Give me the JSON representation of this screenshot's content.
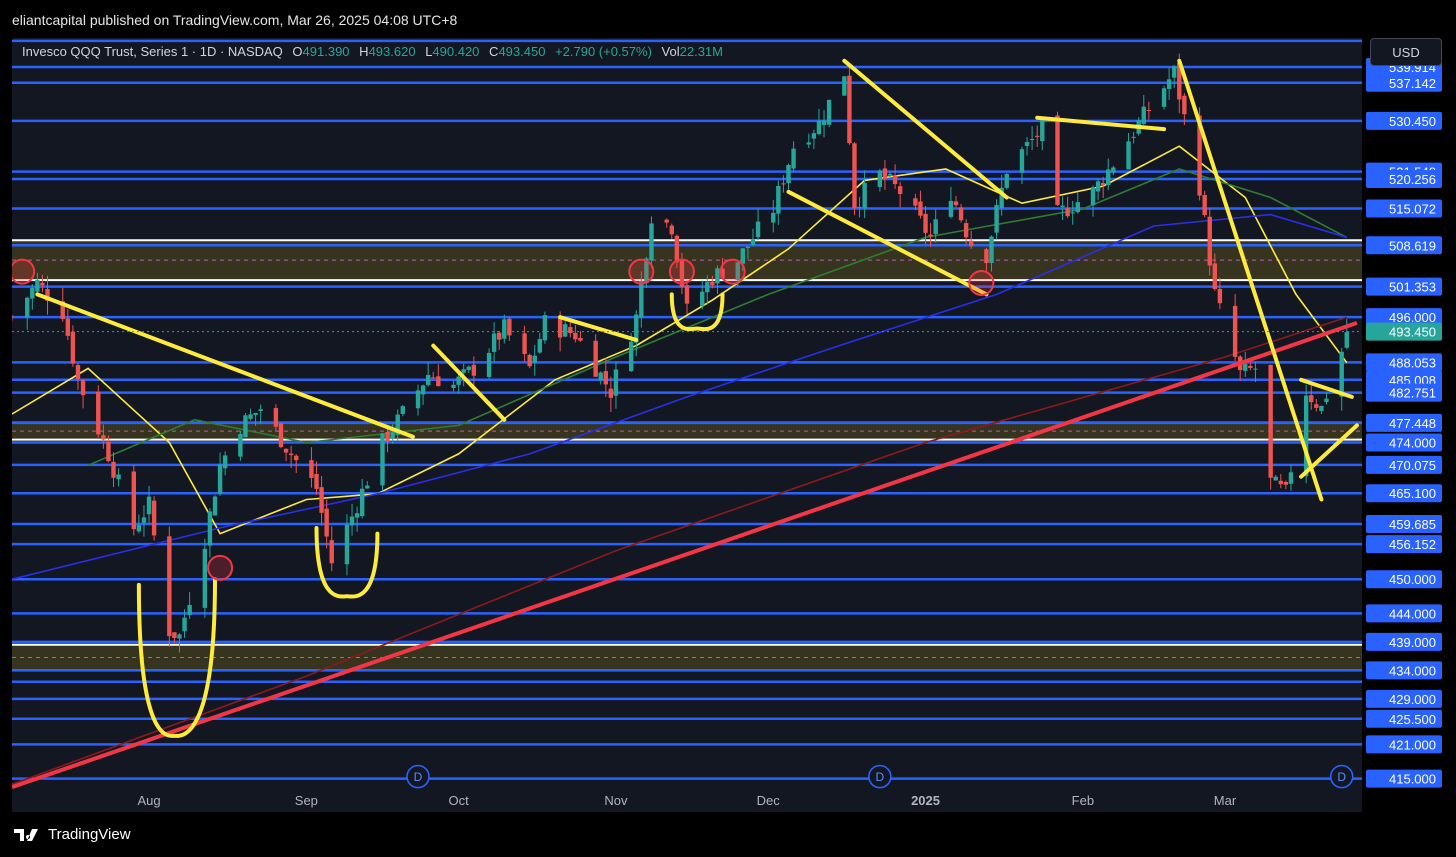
{
  "header": {
    "publisher_text": "eliantcapital published on TradingView.com, Mar 26, 2025 04:08 UTC+8"
  },
  "legend": {
    "name": "Invesco QQQ Trust, Series 1 · 1D · NASDAQ",
    "open_key": "O",
    "open": "491.390",
    "high_key": "H",
    "high": "493.620",
    "low_key": "L",
    "low": "490.420",
    "close_key": "C",
    "close": "493.450",
    "change": "+2.790 (+0.57%)",
    "vol_key": "Vol",
    "vol": "22.31M"
  },
  "currency_button": "USD",
  "footer": {
    "brand": "TradingView"
  },
  "colors": {
    "background": "#131722",
    "up": "#26a69a",
    "down": "#ef5350",
    "level_line": "#2962ff",
    "drawing": "#ffeb3b",
    "trendline": "#f23645",
    "current_price_bg": "#26a69a"
  },
  "chart_data": {
    "type": "candlestick",
    "symbol": "QQQ",
    "interval": "1D",
    "y_range": [
      413,
      545
    ],
    "x_range": [
      "2024-07-05",
      "2025-03-28"
    ],
    "current_price": "493.450",
    "price_levels": [
      {
        "value": 539.914,
        "label": "539.914"
      },
      {
        "value": 537.142,
        "label": "537.142"
      },
      {
        "value": 530.45,
        "label": "530.450"
      },
      {
        "value": 521.54,
        "label": "521.540"
      },
      {
        "value": 520.256,
        "label": "520.256"
      },
      {
        "value": 515.072,
        "label": "515.072"
      },
      {
        "value": 508.619,
        "label": "508.619"
      },
      {
        "value": 501.353,
        "label": "501.353"
      },
      {
        "value": 496.0,
        "label": "496.000"
      },
      {
        "value": 488.053,
        "label": "488.053"
      },
      {
        "value": 485.008,
        "label": "485.008"
      },
      {
        "value": 482.751,
        "label": "482.751"
      },
      {
        "value": 477.448,
        "label": "477.448"
      },
      {
        "value": 474.0,
        "label": "474.000"
      },
      {
        "value": 470.075,
        "label": "470.075"
      },
      {
        "value": 465.1,
        "label": "465.100"
      },
      {
        "value": 459.685,
        "label": "459.685"
      },
      {
        "value": 456.152,
        "label": "456.152"
      },
      {
        "value": 450.0,
        "label": "450.000"
      },
      {
        "value": 444.0,
        "label": "444.000"
      },
      {
        "value": 439.0,
        "label": "439.000"
      },
      {
        "value": 434.0,
        "label": "434.000"
      },
      {
        "value": 429.0,
        "label": "429.000"
      },
      {
        "value": 425.5,
        "label": "425.500"
      },
      {
        "value": 421.0,
        "label": "421.000"
      },
      {
        "value": 415.0,
        "label": "415.000"
      }
    ],
    "extra_lines": [
      544.5,
      432.0
    ],
    "zones": [
      {
        "from": 502.5,
        "to": 509.5
      },
      {
        "from": 474.5,
        "to": 477.5
      },
      {
        "from": 434.0,
        "to": 438.5
      }
    ],
    "x_ticks": [
      {
        "date": "2024-08-01",
        "label": "Aug",
        "bold": false
      },
      {
        "date": "2024-09-01",
        "label": "Sep",
        "bold": false
      },
      {
        "date": "2024-10-01",
        "label": "Oct",
        "bold": false
      },
      {
        "date": "2024-11-01",
        "label": "Nov",
        "bold": false
      },
      {
        "date": "2024-12-01",
        "label": "Dec",
        "bold": false
      },
      {
        "date": "2025-01-01",
        "label": "2025",
        "bold": true
      },
      {
        "date": "2025-02-01",
        "label": "Feb",
        "bold": false
      },
      {
        "date": "2025-03-01",
        "label": "Mar",
        "bold": false
      }
    ],
    "dividend_markers": [
      {
        "date": "2024-09-23",
        "value": 415,
        "label": "D"
      },
      {
        "date": "2024-12-23",
        "value": 415,
        "label": "D"
      },
      {
        "date": "2025-03-24",
        "value": 415,
        "label": "D"
      }
    ],
    "close_path": [
      [
        "2024-07-05",
        496
      ],
      [
        "2024-07-10",
        502
      ],
      [
        "2024-07-15",
        497
      ],
      [
        "2024-07-18",
        485
      ],
      [
        "2024-07-24",
        472
      ],
      [
        "2024-07-29",
        459
      ],
      [
        "2024-08-01",
        463
      ],
      [
        "2024-08-05",
        441
      ],
      [
        "2024-08-07",
        440
      ],
      [
        "2024-08-12",
        457
      ],
      [
        "2024-08-15",
        470
      ],
      [
        "2024-08-19",
        477
      ],
      [
        "2024-08-23",
        480
      ],
      [
        "2024-08-29",
        472
      ],
      [
        "2024-09-03",
        466
      ],
      [
        "2024-09-06",
        453
      ],
      [
        "2024-09-10",
        461
      ],
      [
        "2024-09-16",
        474
      ],
      [
        "2024-09-20",
        479
      ],
      [
        "2024-09-25",
        486
      ],
      [
        "2024-09-30",
        484
      ],
      [
        "2024-10-04",
        487
      ],
      [
        "2024-10-10",
        494
      ],
      [
        "2024-10-15",
        487
      ],
      [
        "2024-10-18",
        495
      ],
      [
        "2024-10-24",
        493
      ],
      [
        "2024-10-31",
        483
      ],
      [
        "2024-11-05",
        496
      ],
      [
        "2024-11-08",
        514
      ],
      [
        "2024-11-12",
        512
      ],
      [
        "2024-11-15",
        497
      ],
      [
        "2024-11-20",
        503
      ],
      [
        "2024-11-25",
        506
      ],
      [
        "2024-12-02",
        515
      ],
      [
        "2024-12-06",
        526
      ],
      [
        "2024-12-11",
        530
      ],
      [
        "2024-12-16",
        539
      ],
      [
        "2024-12-18",
        516
      ],
      [
        "2024-12-23",
        521
      ],
      [
        "2024-12-27",
        518
      ],
      [
        "2025-01-02",
        510
      ],
      [
        "2025-01-06",
        518
      ],
      [
        "2025-01-10",
        509
      ],
      [
        "2025-01-13",
        507
      ],
      [
        "2025-01-17",
        522
      ],
      [
        "2025-01-24",
        529
      ],
      [
        "2025-01-27",
        514
      ],
      [
        "2025-02-03",
        518
      ],
      [
        "2025-02-07",
        523
      ],
      [
        "2025-02-12",
        530
      ],
      [
        "2025-02-19",
        539
      ],
      [
        "2025-02-24",
        519
      ],
      [
        "2025-02-27",
        500
      ],
      [
        "2025-03-04",
        486
      ],
      [
        "2025-03-07",
        487
      ],
      [
        "2025-03-10",
        467
      ],
      [
        "2025-03-13",
        465
      ],
      [
        "2025-03-17",
        483
      ],
      [
        "2025-03-20",
        480
      ],
      [
        "2025-03-24",
        490
      ],
      [
        "2025-03-25",
        493.45
      ]
    ],
    "moving_averages": [
      {
        "color": "#ffeb3b",
        "points": [
          [
            "2024-07-05",
            479
          ],
          [
            "2024-07-20",
            487
          ],
          [
            "2024-08-05",
            474
          ],
          [
            "2024-08-15",
            458
          ],
          [
            "2024-09-01",
            464
          ],
          [
            "2024-09-15",
            465
          ],
          [
            "2024-10-01",
            472
          ],
          [
            "2024-10-20",
            485
          ],
          [
            "2024-11-05",
            491
          ],
          [
            "2024-11-20",
            499
          ],
          [
            "2024-12-05",
            508
          ],
          [
            "2024-12-20",
            520
          ],
          [
            "2025-01-05",
            522
          ],
          [
            "2025-01-20",
            516
          ],
          [
            "2025-02-05",
            519
          ],
          [
            "2025-02-20",
            526
          ],
          [
            "2025-03-05",
            517
          ],
          [
            "2025-03-15",
            500
          ],
          [
            "2025-03-25",
            488
          ]
        ]
      },
      {
        "color": "#2e7d32",
        "points": [
          [
            "2024-07-20",
            470
          ],
          [
            "2024-08-10",
            478
          ],
          [
            "2024-09-01",
            474
          ],
          [
            "2024-10-01",
            477
          ],
          [
            "2024-11-01",
            489
          ],
          [
            "2024-12-01",
            500
          ],
          [
            "2025-01-01",
            510
          ],
          [
            "2025-02-01",
            515
          ],
          [
            "2025-02-20",
            522
          ],
          [
            "2025-03-10",
            517
          ],
          [
            "2025-03-25",
            510
          ]
        ]
      },
      {
        "color": "#2a2ee8",
        "points": [
          [
            "2024-07-05",
            450
          ],
          [
            "2024-08-15",
            459
          ],
          [
            "2024-09-15",
            465
          ],
          [
            "2024-10-15",
            472
          ],
          [
            "2024-11-15",
            482
          ],
          [
            "2024-12-15",
            491
          ],
          [
            "2025-01-15",
            500
          ],
          [
            "2025-02-15",
            512
          ],
          [
            "2025-03-10",
            514
          ],
          [
            "2025-03-25",
            510
          ]
        ]
      },
      {
        "color": "#8b1a1a",
        "points": [
          [
            "2024-07-05",
            414
          ],
          [
            "2024-09-01",
            433
          ],
          [
            "2024-11-01",
            455
          ],
          [
            "2025-01-01",
            474
          ],
          [
            "2025-03-01",
            489
          ],
          [
            "2025-03-25",
            496
          ]
        ]
      }
    ],
    "trendlines": [
      {
        "color": "#f23645",
        "from": [
          "2024-07-05",
          413.5
        ],
        "to": [
          "2025-03-27",
          495
        ]
      }
    ],
    "drawings": [
      {
        "from": [
          "2024-07-10",
          500
        ],
        "to": [
          "2024-09-22",
          475
        ]
      },
      {
        "from": [
          "2024-12-16",
          541
        ],
        "to": [
          "2025-01-17",
          517
        ]
      },
      {
        "from": [
          "2024-12-05",
          518
        ],
        "to": [
          "2025-01-13",
          500
        ]
      },
      {
        "from": [
          "2025-01-23",
          531
        ],
        "to": [
          "2025-02-17",
          529
        ]
      },
      {
        "from": [
          "2025-02-20",
          541
        ],
        "to": [
          "2025-03-20",
          464
        ]
      },
      {
        "from": [
          "2025-03-16",
          468
        ],
        "to": [
          "2025-03-27",
          477
        ]
      },
      {
        "from": [
          "2025-03-16",
          485
        ],
        "to": [
          "2025-03-26",
          482
        ]
      },
      {
        "from": [
          "2024-10-21",
          496
        ],
        "to": [
          "2024-11-05",
          492
        ]
      },
      {
        "from": [
          "2024-09-26",
          491
        ],
        "to": [
          "2024-10-10",
          478
        ]
      }
    ],
    "u_curves": [
      {
        "start": [
          "2024-07-30",
          449
        ],
        "bottom": [
          "2024-08-06",
          422.5
        ],
        "end": [
          "2024-08-14",
          450
        ]
      },
      {
        "start": [
          "2024-09-03",
          459
        ],
        "bottom": [
          "2024-09-09",
          447
        ],
        "end": [
          "2024-09-15",
          458
        ]
      },
      {
        "start": [
          "2024-11-12",
          500
        ],
        "bottom": [
          "2024-11-17",
          494
        ],
        "end": [
          "2024-11-22",
          500
        ]
      }
    ],
    "circles": [
      [
        "2024-07-07",
        504
      ],
      [
        "2024-08-15",
        452
      ],
      [
        "2024-11-06",
        504
      ],
      [
        "2024-11-14",
        504
      ],
      [
        "2024-11-24",
        504
      ],
      [
        "2025-01-12",
        502
      ]
    ]
  }
}
